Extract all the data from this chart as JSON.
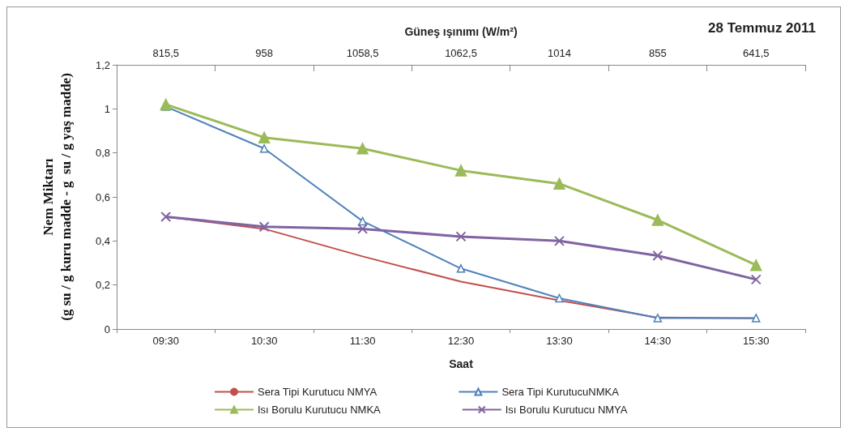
{
  "chart_data": {
    "type": "line",
    "title": "28 Temmuz 2011",
    "xlabel": "Saat",
    "ylabel": "Nem Miktarı\n(g su / g kuru madde - g  su / g yaş madde)",
    "x2label": "Güneş ışınımı (W/m²)",
    "categories": [
      "09:30",
      "10:30",
      "11:30",
      "12:30",
      "13:30",
      "14:30",
      "15:30"
    ],
    "annotations": [
      "815,5",
      "958",
      "1058,5",
      "1062,5",
      "1014",
      "855",
      "641,5"
    ],
    "series": [
      {
        "name": "Sera Tipi Kurutucu NMYA",
        "color": "#c0504d",
        "marker": "none",
        "values": [
          0.51,
          0.455,
          0.33,
          0.215,
          0.13,
          0.052,
          0.049
        ]
      },
      {
        "name": "Sera Tipi KurutucuNMKA",
        "color": "#4f81bd",
        "marker": "triangle",
        "values": [
          1.01,
          0.82,
          0.49,
          0.275,
          0.14,
          0.05,
          0.05
        ]
      },
      {
        "name": "Isı Borulu Kurutucu NMKA",
        "color": "#9bbb59",
        "marker": "triangle",
        "values": [
          1.02,
          0.87,
          0.82,
          0.72,
          0.66,
          0.495,
          0.29
        ]
      },
      {
        "name": "Isı Borulu Kurutucu NMYA",
        "color": "#8064a2",
        "marker": "cross",
        "values": [
          0.51,
          0.465,
          0.455,
          0.42,
          0.4,
          0.333,
          0.225
        ]
      }
    ],
    "ylim": [
      0,
      1.2
    ],
    "yticks": [
      0,
      {
        "value": 0.2,
        "label": "0,2"
      },
      {
        "value": 0.4,
        "label": "0,4"
      },
      {
        "value": 0.6,
        "label": "0,6"
      },
      {
        "value": 0.8,
        "label": "0,8"
      },
      1,
      {
        "value": 1.2,
        "label": "1,2"
      }
    ],
    "grid": false,
    "legend": "bottom"
  }
}
